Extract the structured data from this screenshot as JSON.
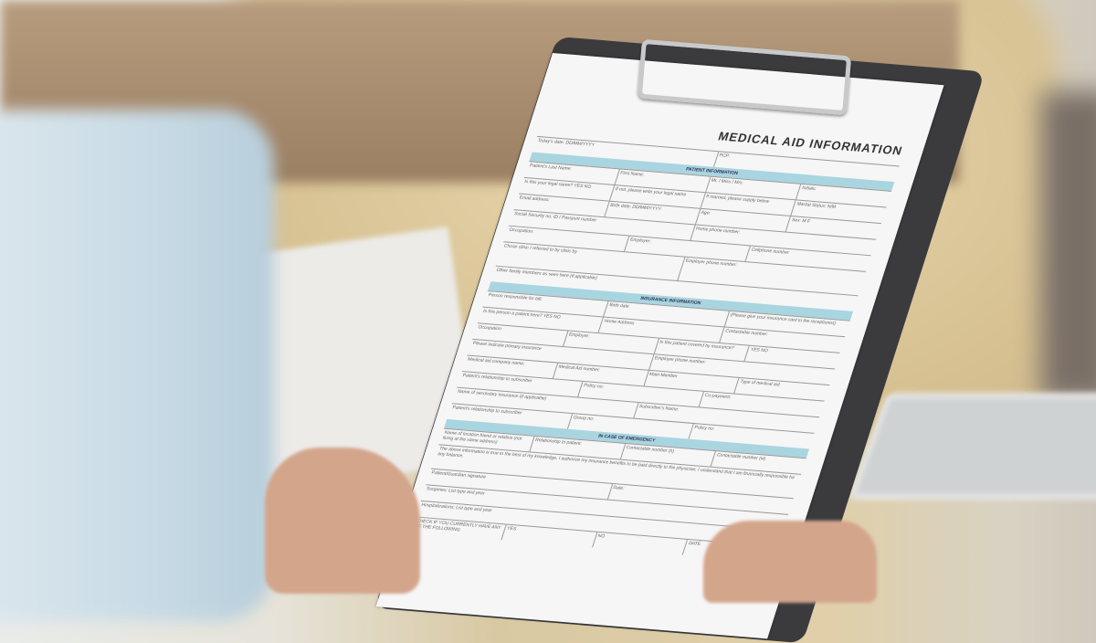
{
  "form": {
    "title": "MEDICAL AID INFORMATION",
    "sections": [
      "PATIENT INFORMATION",
      "INSURANCE INFORMATION",
      "IN CASE OF EMERGENCY"
    ],
    "rows": [
      [
        "Today's date: DD/MM/YYYY",
        "PCP:"
      ],
      [
        "Patient's Last Name:",
        "First Name:",
        "Mr. / Miss / Mrs",
        "Initials:"
      ],
      [
        "Is this your legal name? YES NO",
        "If not, please write your legal name",
        "If married, please supply below",
        "Marital Status: N/M"
      ],
      [
        "Email address:",
        "Birth date: DD/MM/YYYY",
        "Age:",
        "Sex: M F"
      ],
      [
        "Social Security no: ID / Passport number",
        "Home phone number:"
      ],
      [
        "Occupation:",
        "Employer:",
        "Cellphone number:"
      ],
      [
        "Chose clinic / referred to by clinic by",
        "Employer phone number:"
      ],
      [
        "Other family members as seen here (if applicable)"
      ],
      [
        "Person responsible for bill:",
        "Birth date",
        "(Please give your insurance card to the receptionist)"
      ],
      [
        "Is this person a patient here? YES NO",
        "Home Address",
        "Contactable number:"
      ],
      [
        "Occupation",
        "Employer:",
        "Is this patient covered by insurance?",
        "YES NO"
      ],
      [
        "Please indicate primary insurance",
        "Employer phone number:"
      ],
      [
        "Medical aid company name:",
        "Medical Aid number:",
        "Main Member",
        "Type of medical aid"
      ],
      [
        "Patient's relationship to subscriber",
        "Policy no:",
        "Co-payment:"
      ],
      [
        "Name of secondary insurance (if applicable)",
        "Subscriber's Name:"
      ],
      [
        "Patient's relationship to subscriber",
        "Group no:",
        "Policy no:"
      ],
      [
        "Name of location friend or relative (not living at the same address)",
        "Relationship to patient:",
        "Contactable number (h)",
        "Contactable number (w)"
      ],
      [
        "The above information is true to the best of my knowledge. I authorize my insurance benefits to be paid directly to the physician. I understand that I am financially responsible for any balance."
      ],
      [
        "Patient/Guardian signature",
        "Date:"
      ],
      [
        "Surgeries: List type and year"
      ],
      [
        "Hospitalizations: List type and year"
      ],
      [
        "CHECK IF YOU CURRENTLY HAVE ANY OF THE FOLLOWING:",
        "YES",
        "NO",
        "DATE"
      ]
    ]
  }
}
